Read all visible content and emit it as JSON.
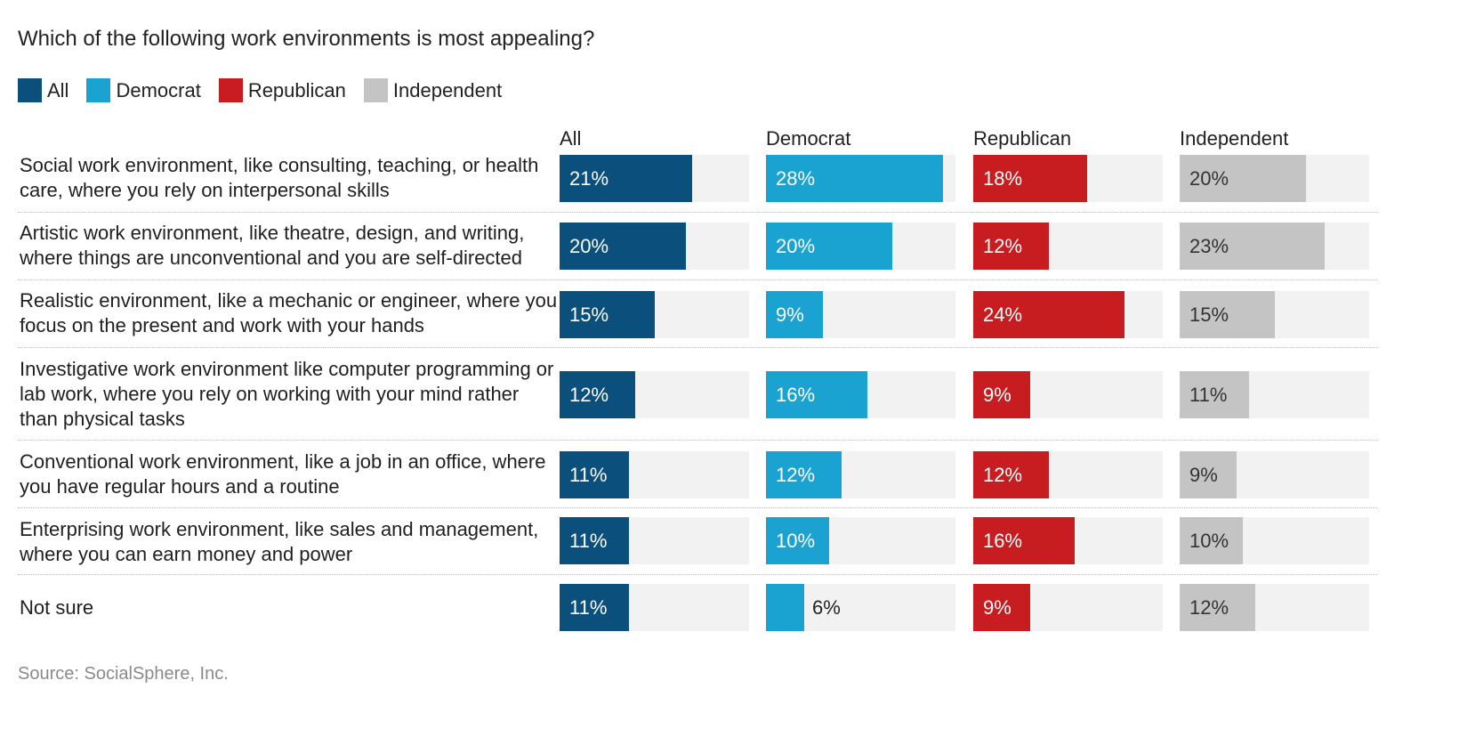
{
  "title": "Which of the following work environments is most appealing?",
  "legend": [
    {
      "label": "All",
      "color": "#0b4f7c"
    },
    {
      "label": "Democrat",
      "color": "#1aa3d1"
    },
    {
      "label": "Republican",
      "color": "#c81d20"
    },
    {
      "label": "Independent",
      "color": "#c4c4c4"
    }
  ],
  "source": "Source: SocialSphere, Inc.",
  "chart_data": {
    "type": "bar",
    "title": "Which of the following work environments is most appealing?",
    "xlim": [
      0,
      30
    ],
    "value_suffix": "%",
    "categories": [
      "Social work environment, like consulting, teaching, or health care, where you rely on interpersonal skills",
      "Artistic work environment, like theatre, design, and writing, where things are unconventional and you are self-directed",
      "Realistic environment, like a mechanic or engineer, where you focus on the present and work with your hands",
      "Investigative work environment like computer programming or lab work, where you rely on working with your mind rather than physical tasks",
      "Conventional work environment, like a job in an office, where you have regular hours and a routine",
      "Enterprising work environment, like sales and management, where you can earn money and power",
      "Not sure"
    ],
    "series": [
      {
        "name": "All",
        "color": "#0b4f7c",
        "text_color": "#ffffff",
        "values": [
          21,
          20,
          15,
          12,
          11,
          11,
          11
        ]
      },
      {
        "name": "Democrat",
        "color": "#1aa3d1",
        "text_color": "#ffffff",
        "values": [
          28,
          20,
          9,
          16,
          12,
          10,
          6
        ]
      },
      {
        "name": "Republican",
        "color": "#c81d20",
        "text_color": "#ffffff",
        "values": [
          18,
          12,
          24,
          9,
          12,
          16,
          9
        ]
      },
      {
        "name": "Independent",
        "color": "#c4c4c4",
        "text_color": "#333333",
        "values": [
          20,
          23,
          15,
          11,
          9,
          10,
          12
        ]
      }
    ]
  }
}
